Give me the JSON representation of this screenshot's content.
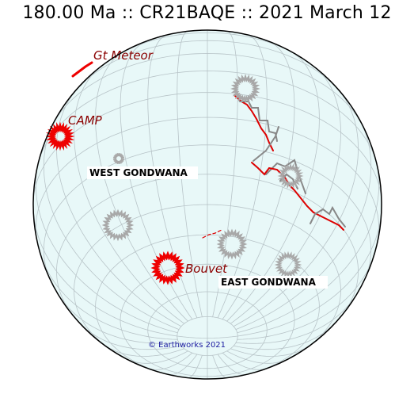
{
  "header": {
    "title": "180.00 Ma :: CR21BAQE :: 2021 March 12"
  },
  "labels": {
    "gt_meteor": "Gt Meteor",
    "camp": "CAMP",
    "bouvet": "Bouvet",
    "west_gondwana": "WEST GONDWANA",
    "east_gondwana": "EAST GONDWANA"
  },
  "credit": "© Earthworks 2021",
  "colors": {
    "ocean": "#e8f8f8",
    "grid": "#b8c4c8",
    "hotspot_active": "#ee0000",
    "hotspot_inactive": "#a8a8a8",
    "ridge": "#dd0000",
    "transform": "#888888"
  }
}
